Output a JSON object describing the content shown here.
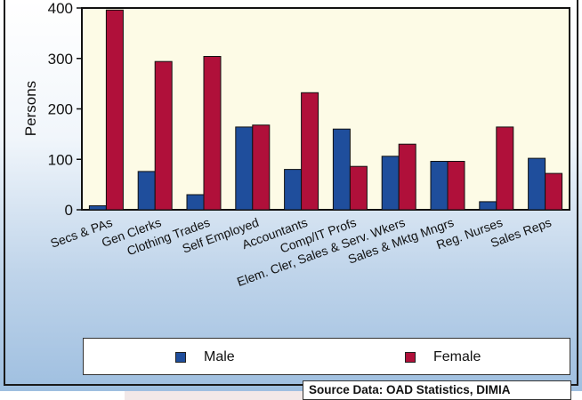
{
  "chart_data": {
    "type": "bar",
    "categories": [
      "Secs & PAs",
      "Gen Clerks",
      "Clothing Trades",
      "Self Employed",
      "Accountants",
      "Comp/IT Profs",
      "Elem. Cler, Sales & Serv. Wkers",
      "Sales & Mktg Mngrs",
      "Reg. Nurses",
      "Sales Reps"
    ],
    "series": [
      {
        "name": "Male",
        "color": "#1f4e9c",
        "values": [
          8,
          76,
          30,
          164,
          80,
          160,
          106,
          96,
          16,
          102
        ]
      },
      {
        "name": "Female",
        "color": "#b0103a",
        "values": [
          396,
          294,
          304,
          168,
          232,
          86,
          130,
          96,
          164,
          72
        ]
      }
    ],
    "ylabel": "Persons",
    "xlabel": "",
    "ylim": [
      0,
      400
    ],
    "yticks": [
      0,
      100,
      200,
      300,
      400
    ],
    "grid": false,
    "legend_position": "bottom"
  },
  "source": "Source Data: OAD Statistics, DIMIA"
}
